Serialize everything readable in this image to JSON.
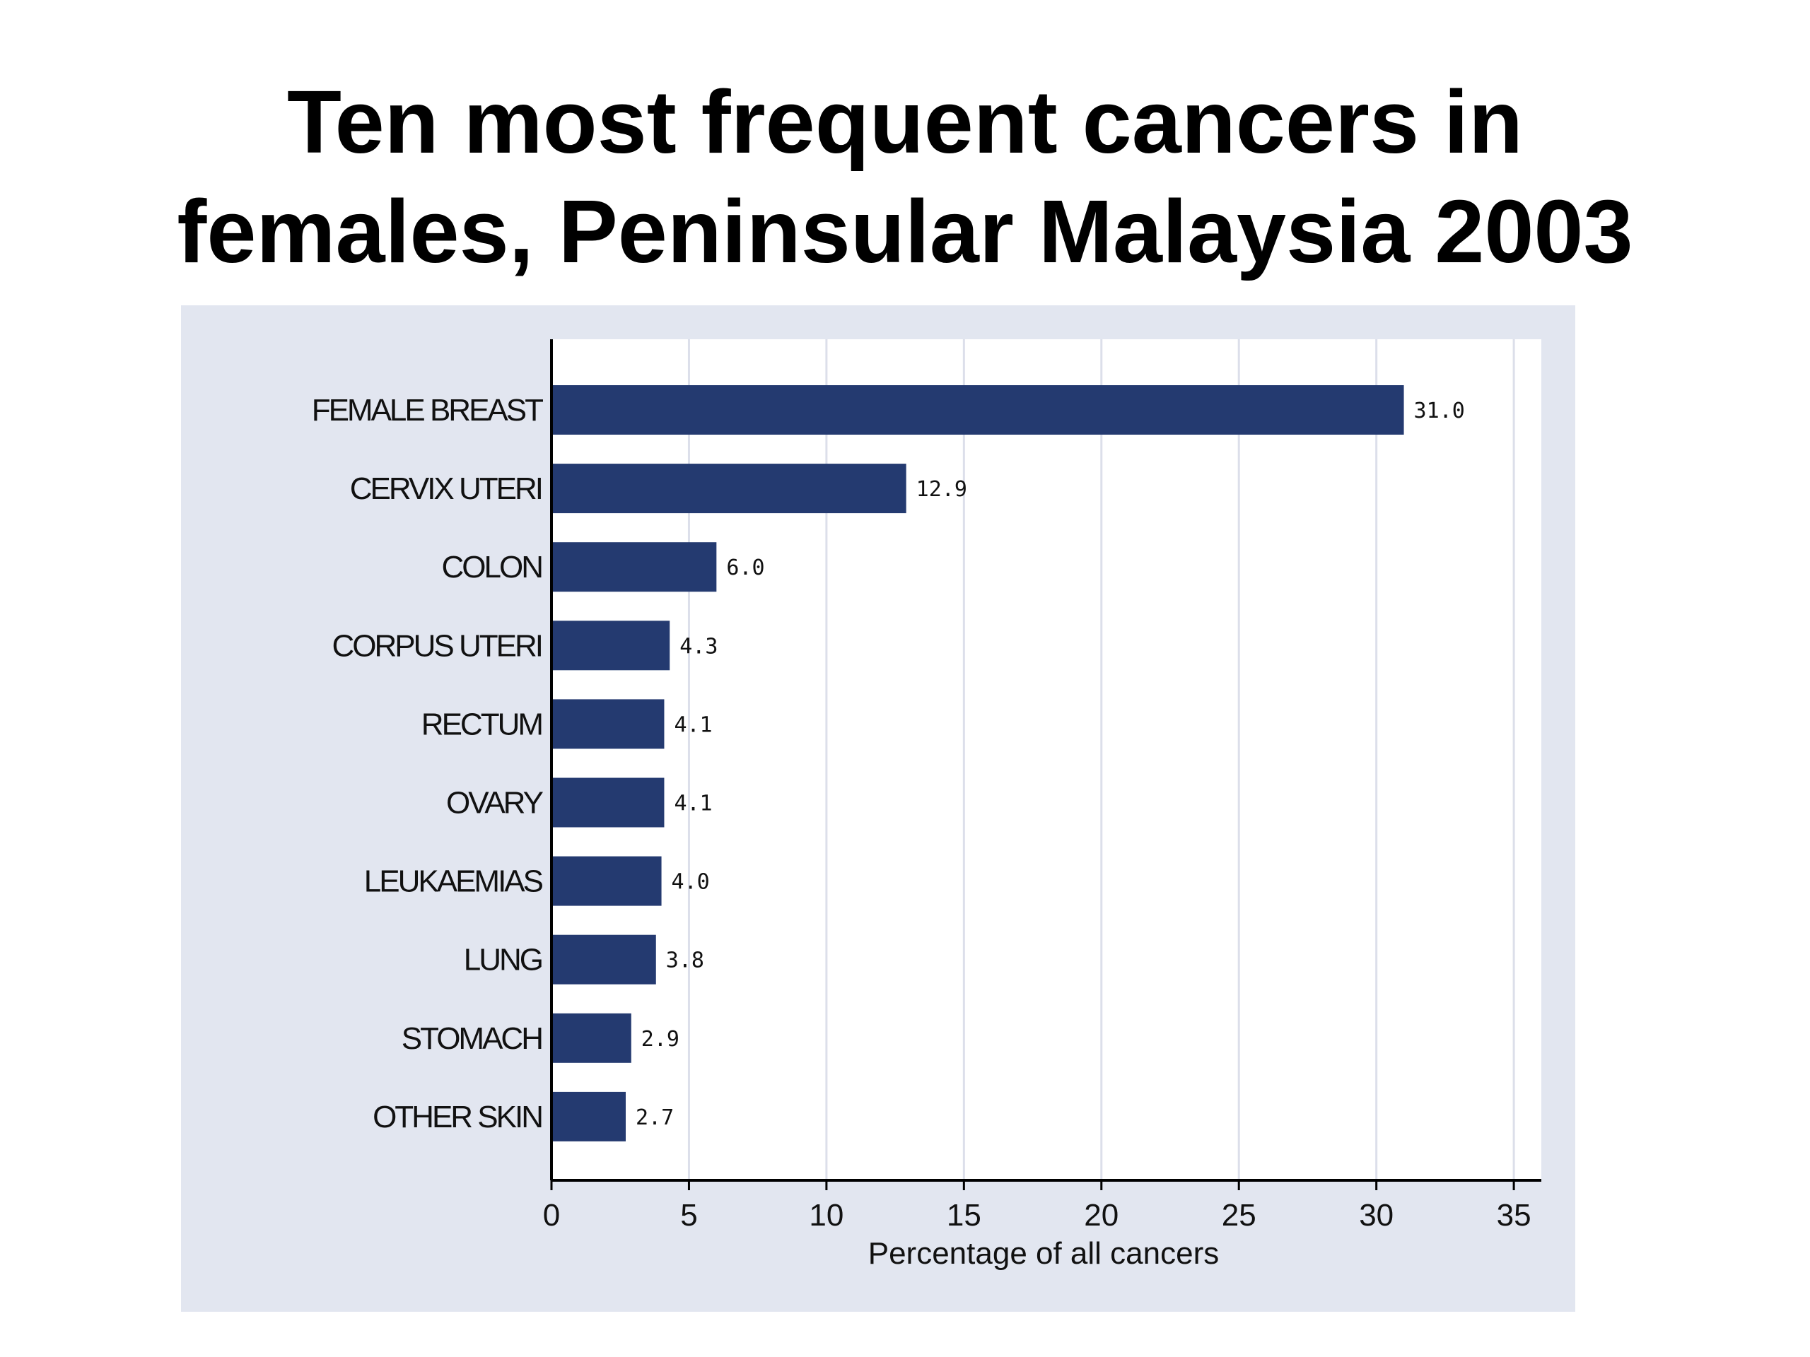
{
  "slide": {
    "title_line1": "Ten most frequent cancers in",
    "title_line2": "females, Peninsular Malaysia 2003"
  },
  "colors": {
    "panel_background": "#e2e6f0",
    "plot_background": "#ffffff",
    "bar": "#243a70",
    "gridline": "#dcdfea"
  },
  "chart_data": {
    "type": "bar",
    "orientation": "horizontal",
    "categories": [
      "FEMALE BREAST",
      "CERVIX UTERI",
      "COLON",
      "CORPUS UTERI",
      "RECTUM",
      "OVARY",
      "LEUKAEMIAS",
      "LUNG",
      "STOMACH",
      "OTHER SKIN"
    ],
    "values": [
      31.0,
      12.9,
      6.0,
      4.3,
      4.1,
      4.1,
      4.0,
      3.8,
      2.9,
      2.7
    ],
    "value_labels": [
      "31.0",
      "12.9",
      "6.0",
      "4.3",
      "4.1",
      "4.1",
      "4.0",
      "3.8",
      "2.9",
      "2.7"
    ],
    "xlabel": "Percentage of all cancers",
    "xlim": [
      0,
      36
    ],
    "xticks": [
      0,
      5,
      10,
      15,
      20,
      25,
      30,
      35
    ],
    "grid": true
  }
}
